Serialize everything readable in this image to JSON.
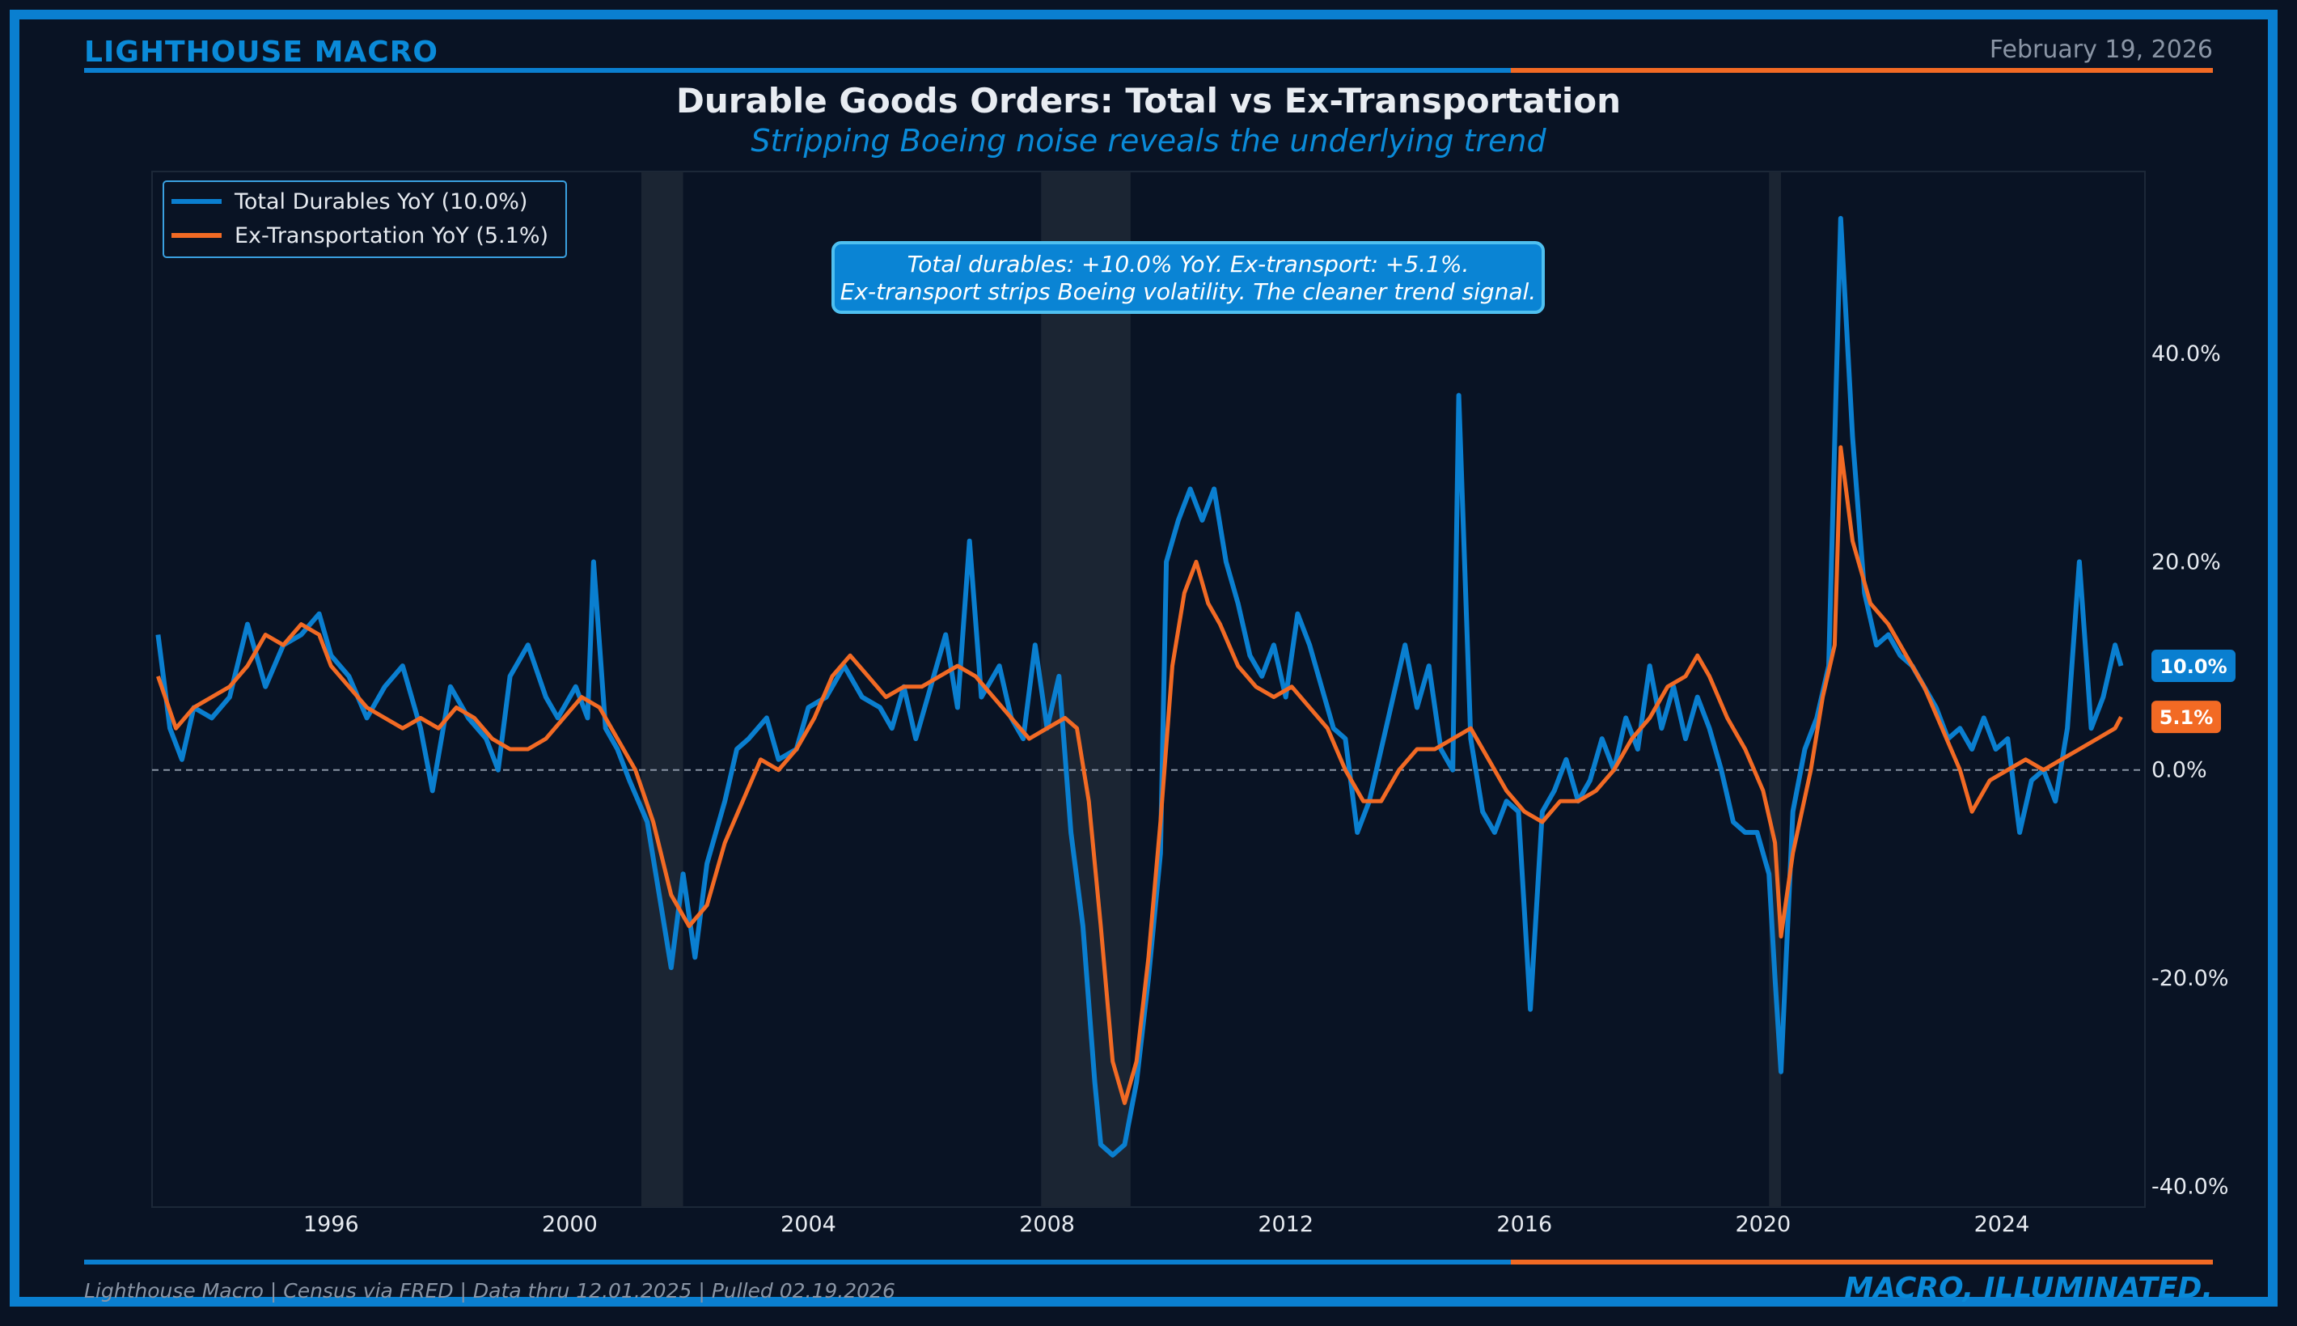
{
  "header": {
    "brand": "LIGHTHOUSE MACRO",
    "date": "February 19, 2026"
  },
  "footer": {
    "source": "Lighthouse Macro | Census via FRED | Data thru 12.01.2025 | Pulled 02.19.2026",
    "tagline": "MACRO, ILLUMINATED."
  },
  "colors": {
    "background": "#091324",
    "blue": "#0a7fd0",
    "orange": "#f26a24",
    "recession": "#1b2533"
  },
  "chart_data": {
    "type": "line",
    "title": "Durable Goods Orders: Total vs Ex-Transportation",
    "subtitle": "Stripping Boeing noise reveals the underlying trend",
    "xlabel": "",
    "ylabel": "",
    "xlim": [
      1993.0,
      2026.4
    ],
    "ylim": [
      -42,
      57.5
    ],
    "x_ticks": [
      1996,
      2000,
      2004,
      2008,
      2012,
      2016,
      2020,
      2024
    ],
    "y_ticks": [
      {
        "value": 40,
        "label": "40.0%"
      },
      {
        "value": 20,
        "label": "20.0%"
      },
      {
        "value": 0,
        "label": "0.0%"
      },
      {
        "value": -20,
        "label": "-20.0%"
      },
      {
        "value": -40,
        "label": "-40.0%"
      }
    ],
    "y_axis_side": "right",
    "zero_line": true,
    "legend_position": "top-left",
    "recessions": [
      [
        2001.2,
        2001.9
      ],
      [
        2007.9,
        2009.4
      ],
      [
        2020.1,
        2020.3
      ]
    ],
    "annotation": {
      "lines": [
        "Total durables: +10.0% YoY. Ex-transport: +5.1%.",
        "Ex-transport strips Boeing volatility. The cleaner trend signal."
      ]
    },
    "series": [
      {
        "name": "Total Durables YoY (10.0%)",
        "color": "#0a7fd0",
        "last_label": "10.0%",
        "points": [
          [
            1993.1,
            13
          ],
          [
            1993.3,
            4
          ],
          [
            1993.5,
            1
          ],
          [
            1993.7,
            6
          ],
          [
            1994.0,
            5
          ],
          [
            1994.3,
            7
          ],
          [
            1994.6,
            14
          ],
          [
            1994.9,
            8
          ],
          [
            1995.2,
            12
          ],
          [
            1995.5,
            13
          ],
          [
            1995.8,
            15
          ],
          [
            1996.0,
            11
          ],
          [
            1996.3,
            9
          ],
          [
            1996.6,
            5
          ],
          [
            1996.9,
            8
          ],
          [
            1997.2,
            10
          ],
          [
            1997.5,
            4
          ],
          [
            1997.7,
            -2
          ],
          [
            1998.0,
            8
          ],
          [
            1998.3,
            5
          ],
          [
            1998.6,
            3
          ],
          [
            1998.8,
            0
          ],
          [
            1999.0,
            9
          ],
          [
            1999.3,
            12
          ],
          [
            1999.6,
            7
          ],
          [
            1999.8,
            5
          ],
          [
            2000.1,
            8
          ],
          [
            2000.3,
            5
          ],
          [
            2000.4,
            20
          ],
          [
            2000.6,
            4
          ],
          [
            2000.8,
            2
          ],
          [
            2001.0,
            -1
          ],
          [
            2001.3,
            -5
          ],
          [
            2001.5,
            -12
          ],
          [
            2001.7,
            -19
          ],
          [
            2001.9,
            -10
          ],
          [
            2002.1,
            -18
          ],
          [
            2002.3,
            -9
          ],
          [
            2002.6,
            -3
          ],
          [
            2002.8,
            2
          ],
          [
            2003.0,
            3
          ],
          [
            2003.3,
            5
          ],
          [
            2003.5,
            1
          ],
          [
            2003.8,
            2
          ],
          [
            2004.0,
            6
          ],
          [
            2004.3,
            7
          ],
          [
            2004.6,
            10
          ],
          [
            2004.9,
            7
          ],
          [
            2005.2,
            6
          ],
          [
            2005.4,
            4
          ],
          [
            2005.6,
            8
          ],
          [
            2005.8,
            3
          ],
          [
            2006.1,
            9
          ],
          [
            2006.3,
            13
          ],
          [
            2006.5,
            6
          ],
          [
            2006.7,
            22
          ],
          [
            2006.9,
            7
          ],
          [
            2007.2,
            10
          ],
          [
            2007.4,
            5
          ],
          [
            2007.6,
            3
          ],
          [
            2007.8,
            12
          ],
          [
            2008.0,
            4
          ],
          [
            2008.2,
            9
          ],
          [
            2008.4,
            -6
          ],
          [
            2008.6,
            -15
          ],
          [
            2008.8,
            -30
          ],
          [
            2008.9,
            -36
          ],
          [
            2009.1,
            -37
          ],
          [
            2009.3,
            -36
          ],
          [
            2009.5,
            -30
          ],
          [
            2009.7,
            -20
          ],
          [
            2009.9,
            -8
          ],
          [
            2010.0,
            20
          ],
          [
            2010.2,
            24
          ],
          [
            2010.4,
            27
          ],
          [
            2010.6,
            24
          ],
          [
            2010.8,
            27
          ],
          [
            2011.0,
            20
          ],
          [
            2011.2,
            16
          ],
          [
            2011.4,
            11
          ],
          [
            2011.6,
            9
          ],
          [
            2011.8,
            12
          ],
          [
            2012.0,
            7
          ],
          [
            2012.2,
            15
          ],
          [
            2012.4,
            12
          ],
          [
            2012.6,
            8
          ],
          [
            2012.8,
            4
          ],
          [
            2013.0,
            3
          ],
          [
            2013.2,
            -6
          ],
          [
            2013.4,
            -3
          ],
          [
            2013.6,
            2
          ],
          [
            2013.8,
            7
          ],
          [
            2014.0,
            12
          ],
          [
            2014.2,
            6
          ],
          [
            2014.4,
            10
          ],
          [
            2014.6,
            2
          ],
          [
            2014.8,
            0
          ],
          [
            2014.9,
            36
          ],
          [
            2015.1,
            3
          ],
          [
            2015.3,
            -4
          ],
          [
            2015.5,
            -6
          ],
          [
            2015.7,
            -3
          ],
          [
            2015.9,
            -4
          ],
          [
            2016.1,
            -23
          ],
          [
            2016.3,
            -4
          ],
          [
            2016.5,
            -2
          ],
          [
            2016.7,
            1
          ],
          [
            2016.9,
            -3
          ],
          [
            2017.1,
            -1
          ],
          [
            2017.3,
            3
          ],
          [
            2017.5,
            0
          ],
          [
            2017.7,
            5
          ],
          [
            2017.9,
            2
          ],
          [
            2018.1,
            10
          ],
          [
            2018.3,
            4
          ],
          [
            2018.5,
            8
          ],
          [
            2018.7,
            3
          ],
          [
            2018.9,
            7
          ],
          [
            2019.1,
            4
          ],
          [
            2019.3,
            0
          ],
          [
            2019.5,
            -5
          ],
          [
            2019.7,
            -6
          ],
          [
            2019.9,
            -6
          ],
          [
            2020.1,
            -10
          ],
          [
            2020.2,
            -20
          ],
          [
            2020.3,
            -29
          ],
          [
            2020.5,
            -4
          ],
          [
            2020.7,
            2
          ],
          [
            2020.9,
            5
          ],
          [
            2021.1,
            10
          ],
          [
            2021.3,
            53
          ],
          [
            2021.5,
            32
          ],
          [
            2021.7,
            17
          ],
          [
            2021.9,
            12
          ],
          [
            2022.1,
            13
          ],
          [
            2022.3,
            11
          ],
          [
            2022.5,
            10
          ],
          [
            2022.7,
            8
          ],
          [
            2022.9,
            6
          ],
          [
            2023.1,
            3
          ],
          [
            2023.3,
            4
          ],
          [
            2023.5,
            2
          ],
          [
            2023.7,
            5
          ],
          [
            2023.9,
            2
          ],
          [
            2024.1,
            3
          ],
          [
            2024.3,
            -6
          ],
          [
            2024.5,
            -1
          ],
          [
            2024.7,
            0
          ],
          [
            2024.9,
            -3
          ],
          [
            2025.1,
            4
          ],
          [
            2025.3,
            20
          ],
          [
            2025.5,
            4
          ],
          [
            2025.7,
            7
          ],
          [
            2025.9,
            12
          ],
          [
            2026.0,
            10
          ]
        ]
      },
      {
        "name": "Ex-Transportation YoY (5.1%)",
        "color": "#f26a24",
        "last_label": "5.1%",
        "points": [
          [
            1993.1,
            9
          ],
          [
            1993.4,
            4
          ],
          [
            1993.7,
            6
          ],
          [
            1994.0,
            7
          ],
          [
            1994.3,
            8
          ],
          [
            1994.6,
            10
          ],
          [
            1994.9,
            13
          ],
          [
            1995.2,
            12
          ],
          [
            1995.5,
            14
          ],
          [
            1995.8,
            13
          ],
          [
            1996.0,
            10
          ],
          [
            1996.3,
            8
          ],
          [
            1996.6,
            6
          ],
          [
            1996.9,
            5
          ],
          [
            1997.2,
            4
          ],
          [
            1997.5,
            5
          ],
          [
            1997.8,
            4
          ],
          [
            1998.1,
            6
          ],
          [
            1998.4,
            5
          ],
          [
            1998.7,
            3
          ],
          [
            1999.0,
            2
          ],
          [
            1999.3,
            2
          ],
          [
            1999.6,
            3
          ],
          [
            1999.9,
            5
          ],
          [
            2000.2,
            7
          ],
          [
            2000.5,
            6
          ],
          [
            2000.8,
            3
          ],
          [
            2001.1,
            0
          ],
          [
            2001.4,
            -5
          ],
          [
            2001.7,
            -12
          ],
          [
            2002.0,
            -15
          ],
          [
            2002.3,
            -13
          ],
          [
            2002.6,
            -7
          ],
          [
            2002.9,
            -3
          ],
          [
            2003.2,
            1
          ],
          [
            2003.5,
            0
          ],
          [
            2003.8,
            2
          ],
          [
            2004.1,
            5
          ],
          [
            2004.4,
            9
          ],
          [
            2004.7,
            11
          ],
          [
            2005.0,
            9
          ],
          [
            2005.3,
            7
          ],
          [
            2005.6,
            8
          ],
          [
            2005.9,
            8
          ],
          [
            2006.2,
            9
          ],
          [
            2006.5,
            10
          ],
          [
            2006.8,
            9
          ],
          [
            2007.1,
            7
          ],
          [
            2007.4,
            5
          ],
          [
            2007.7,
            3
          ],
          [
            2008.0,
            4
          ],
          [
            2008.3,
            5
          ],
          [
            2008.5,
            4
          ],
          [
            2008.7,
            -3
          ],
          [
            2008.9,
            -15
          ],
          [
            2009.1,
            -28
          ],
          [
            2009.3,
            -32
          ],
          [
            2009.5,
            -28
          ],
          [
            2009.7,
            -18
          ],
          [
            2009.9,
            -5
          ],
          [
            2010.1,
            10
          ],
          [
            2010.3,
            17
          ],
          [
            2010.5,
            20
          ],
          [
            2010.7,
            16
          ],
          [
            2010.9,
            14
          ],
          [
            2011.2,
            10
          ],
          [
            2011.5,
            8
          ],
          [
            2011.8,
            7
          ],
          [
            2012.1,
            8
          ],
          [
            2012.4,
            6
          ],
          [
            2012.7,
            4
          ],
          [
            2013.0,
            0
          ],
          [
            2013.3,
            -3
          ],
          [
            2013.6,
            -3
          ],
          [
            2013.9,
            0
          ],
          [
            2014.2,
            2
          ],
          [
            2014.5,
            2
          ],
          [
            2014.8,
            3
          ],
          [
            2015.1,
            4
          ],
          [
            2015.4,
            1
          ],
          [
            2015.7,
            -2
          ],
          [
            2016.0,
            -4
          ],
          [
            2016.3,
            -5
          ],
          [
            2016.6,
            -3
          ],
          [
            2016.9,
            -3
          ],
          [
            2017.2,
            -2
          ],
          [
            2017.5,
            0
          ],
          [
            2017.8,
            3
          ],
          [
            2018.1,
            5
          ],
          [
            2018.4,
            8
          ],
          [
            2018.7,
            9
          ],
          [
            2018.9,
            11
          ],
          [
            2019.1,
            9
          ],
          [
            2019.4,
            5
          ],
          [
            2019.7,
            2
          ],
          [
            2020.0,
            -2
          ],
          [
            2020.2,
            -7
          ],
          [
            2020.3,
            -16
          ],
          [
            2020.5,
            -8
          ],
          [
            2020.8,
            0
          ],
          [
            2021.0,
            7
          ],
          [
            2021.2,
            12
          ],
          [
            2021.3,
            31
          ],
          [
            2021.5,
            22
          ],
          [
            2021.8,
            16
          ],
          [
            2022.1,
            14
          ],
          [
            2022.4,
            11
          ],
          [
            2022.7,
            8
          ],
          [
            2023.0,
            4
          ],
          [
            2023.3,
            0
          ],
          [
            2023.5,
            -4
          ],
          [
            2023.8,
            -1
          ],
          [
            2024.1,
            0
          ],
          [
            2024.4,
            1
          ],
          [
            2024.7,
            0
          ],
          [
            2025.0,
            1
          ],
          [
            2025.3,
            2
          ],
          [
            2025.6,
            3
          ],
          [
            2025.9,
            4
          ],
          [
            2026.0,
            5.1
          ]
        ]
      }
    ]
  }
}
